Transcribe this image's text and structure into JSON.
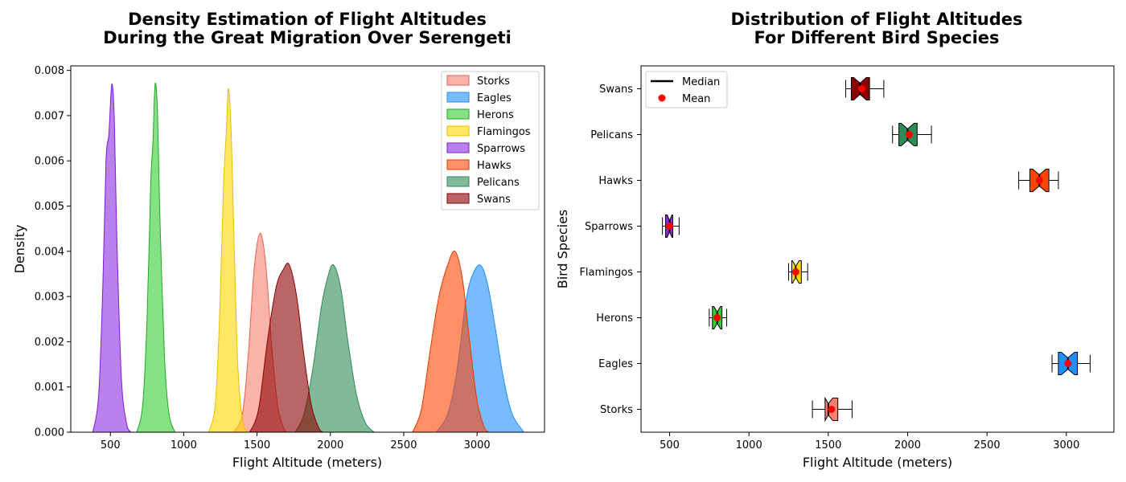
{
  "chart_data": [
    {
      "type": "area",
      "subtype": "kde-density",
      "title": "Density Estimation of Flight Altitudes\nDuring the Great Migration Over Serengeti",
      "xlabel": "Flight Altitude (meters)",
      "ylabel": "Density",
      "xlim": [
        230,
        3460
      ],
      "ylim": [
        0,
        0.0081
      ],
      "xticks": [
        500,
        1000,
        1500,
        2000,
        2500,
        3000
      ],
      "yticks": [
        0.0,
        0.001,
        0.002,
        0.003,
        0.004,
        0.005,
        0.006,
        0.007,
        0.008
      ],
      "ytick_labels": [
        "0.000",
        "0.001",
        "0.002",
        "0.003",
        "0.004",
        "0.005",
        "0.006",
        "0.007",
        "0.008"
      ],
      "grid": false,
      "legend_position": "top-right",
      "series": [
        {
          "name": "Storks",
          "color": "#FA8072",
          "edge": "#E8604C",
          "points": [
            [
              1340,
              0
            ],
            [
              1400,
              0.0004
            ],
            [
              1440,
              0.0017
            ],
            [
              1480,
              0.0036
            ],
            [
              1520,
              0.0044
            ],
            [
              1560,
              0.0037
            ],
            [
              1600,
              0.0019
            ],
            [
              1640,
              0.0006
            ],
            [
              1680,
              0.0001
            ],
            [
              1700,
              0
            ]
          ]
        },
        {
          "name": "Eagles",
          "color": "#1E90FF",
          "edge": "#1E90FF",
          "points": [
            [
              2720,
              0
            ],
            [
              2800,
              0.0004
            ],
            [
              2860,
              0.0013
            ],
            [
              2920,
              0.0028
            ],
            [
              2960,
              0.0034
            ],
            [
              3020,
              0.0037
            ],
            [
              3070,
              0.0033
            ],
            [
              3120,
              0.0024
            ],
            [
              3180,
              0.0012
            ],
            [
              3240,
              0.0004
            ],
            [
              3320,
              0
            ]
          ]
        },
        {
          "name": "Herons",
          "color": "#32CD32",
          "edge": "#22A822",
          "points": [
            [
              680,
              0
            ],
            [
              720,
              0.0006
            ],
            [
              750,
              0.0025
            ],
            [
              775,
              0.0055
            ],
            [
              790,
              0.0064
            ],
            [
              805,
              0.0077
            ],
            [
              822,
              0.007
            ],
            [
              840,
              0.0045
            ],
            [
              870,
              0.0016
            ],
            [
              900,
              0.0004
            ],
            [
              940,
              0
            ]
          ]
        },
        {
          "name": "Flamingos",
          "color": "#FFD700",
          "edge": "#E6C000",
          "points": [
            [
              1170,
              0
            ],
            [
              1215,
              0.0006
            ],
            [
              1245,
              0.0026
            ],
            [
              1272,
              0.0055
            ],
            [
              1290,
              0.0066
            ],
            [
              1306,
              0.0076
            ],
            [
              1325,
              0.0065
            ],
            [
              1345,
              0.004
            ],
            [
              1370,
              0.0014
            ],
            [
              1400,
              0.0003
            ],
            [
              1430,
              0
            ]
          ]
        },
        {
          "name": "Sparrows",
          "color": "#8A2BE2",
          "edge": "#7A1BD2",
          "points": [
            [
              380,
              0
            ],
            [
              420,
              0.0008
            ],
            [
              448,
              0.0032
            ],
            [
              470,
              0.006
            ],
            [
              490,
              0.0066
            ],
            [
              510,
              0.0077
            ],
            [
              528,
              0.0068
            ],
            [
              545,
              0.0042
            ],
            [
              575,
              0.0012
            ],
            [
              610,
              0.0002
            ],
            [
              640,
              0
            ]
          ]
        },
        {
          "name": "Hawks",
          "color": "#FF4500",
          "edge": "#E03C00",
          "points": [
            [
              2560,
              0
            ],
            [
              2620,
              0.0005
            ],
            [
              2680,
              0.0018
            ],
            [
              2740,
              0.003
            ],
            [
              2800,
              0.0037
            ],
            [
              2850,
              0.004
            ],
            [
              2900,
              0.0034
            ],
            [
              2950,
              0.002
            ],
            [
              3000,
              0.0007
            ],
            [
              3050,
              0.0001
            ],
            [
              3080,
              0
            ]
          ]
        },
        {
          "name": "Pelicans",
          "color": "#2E8B57",
          "edge": "#2E8B57",
          "points": [
            [
              1760,
              0
            ],
            [
              1820,
              0.0004
            ],
            [
              1880,
              0.0014
            ],
            [
              1940,
              0.0028
            ],
            [
              1980,
              0.0034
            ],
            [
              2020,
              0.0037
            ],
            [
              2070,
              0.0032
            ],
            [
              2120,
              0.002
            ],
            [
              2180,
              0.0008
            ],
            [
              2240,
              0.0002
            ],
            [
              2300,
              0
            ]
          ]
        },
        {
          "name": "Swans",
          "color": "#8B0000",
          "edge": "#8B0000",
          "points": [
            [
              1450,
              0
            ],
            [
              1510,
              0.0005
            ],
            [
              1570,
              0.002
            ],
            [
              1630,
              0.0032
            ],
            [
              1680,
              0.0036
            ],
            [
              1720,
              0.0037
            ],
            [
              1770,
              0.003
            ],
            [
              1820,
              0.0017
            ],
            [
              1870,
              0.0006
            ],
            [
              1920,
              0.0001
            ],
            [
              1950,
              0
            ]
          ]
        }
      ]
    },
    {
      "type": "box",
      "orientation": "horizontal",
      "notched": true,
      "title": "Distribution of Flight Altitudes\nFor Different Bird Species",
      "xlabel": "Flight Altitude (meters)",
      "ylabel": "Bird Species",
      "xlim": [
        320,
        3300
      ],
      "xticks": [
        500,
        1000,
        1500,
        2000,
        2500,
        3000
      ],
      "categories": [
        "Storks",
        "Eagles",
        "Herons",
        "Flamingos",
        "Sparrows",
        "Hawks",
        "Pelicans",
        "Swans"
      ],
      "grid": false,
      "legend_position": "top-left",
      "legend": [
        {
          "label": "Median",
          "symbol": "line",
          "color": "#000000"
        },
        {
          "label": "Mean",
          "symbol": "dot",
          "color": "#FF0000"
        }
      ],
      "boxes": [
        {
          "name": "Storks",
          "color": "#FA8072",
          "whisker_low": 1400,
          "q1": 1480,
          "median": 1500,
          "mean": 1520,
          "q3": 1560,
          "whisker_high": 1650
        },
        {
          "name": "Eagles",
          "color": "#1E90FF",
          "whisker_low": 2910,
          "q1": 2950,
          "median": 3010,
          "mean": 3010,
          "q3": 3070,
          "whisker_high": 3150
        },
        {
          "name": "Herons",
          "color": "#32CD32",
          "whisker_low": 750,
          "q1": 770,
          "median": 800,
          "mean": 800,
          "q3": 830,
          "whisker_high": 860
        },
        {
          "name": "Flamingos",
          "color": "#FFD700",
          "whisker_low": 1250,
          "q1": 1270,
          "median": 1295,
          "mean": 1295,
          "q3": 1330,
          "whisker_high": 1370
        },
        {
          "name": "Sparrows",
          "color": "#8A2BE2",
          "whisker_low": 455,
          "q1": 475,
          "median": 500,
          "mean": 500,
          "q3": 520,
          "whisker_high": 560
        },
        {
          "name": "Hawks",
          "color": "#FF4500",
          "whisker_low": 2700,
          "q1": 2770,
          "median": 2830,
          "mean": 2830,
          "q3": 2890,
          "whisker_high": 2950
        },
        {
          "name": "Pelicans",
          "color": "#2E8B57",
          "whisker_low": 1905,
          "q1": 1945,
          "median": 2000,
          "mean": 2010,
          "q3": 2060,
          "whisker_high": 2150
        },
        {
          "name": "Swans",
          "color": "#8B0000",
          "whisker_low": 1610,
          "q1": 1645,
          "median": 1700,
          "mean": 1710,
          "q3": 1760,
          "whisker_high": 1850
        }
      ]
    }
  ]
}
